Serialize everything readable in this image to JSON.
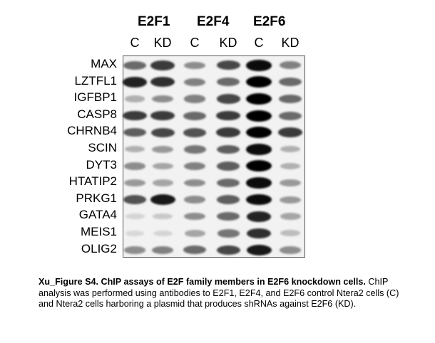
{
  "figure": {
    "groups": [
      "E2F1",
      "E2F4",
      "E2F6"
    ],
    "lanes": [
      "C",
      "KD",
      "C",
      "KD",
      "C",
      "KD"
    ],
    "genes": [
      "MAX",
      "LZTFL1",
      "IGFBP1",
      "CASP8",
      "CHRNB4",
      "SCIN",
      "DYT3",
      "HTATIP2",
      "PRKG1",
      "GATA4",
      "MEIS1",
      "OLIG2"
    ],
    "band_intensity": [
      [
        0.55,
        0.75,
        0.4,
        0.7,
        0.95,
        0.45
      ],
      [
        0.85,
        0.8,
        0.45,
        0.55,
        1.0,
        0.55
      ],
      [
        0.25,
        0.4,
        0.45,
        0.7,
        1.0,
        0.55
      ],
      [
        0.75,
        0.75,
        0.55,
        0.75,
        1.0,
        0.55
      ],
      [
        0.6,
        0.7,
        0.65,
        0.75,
        1.0,
        0.75
      ],
      [
        0.25,
        0.35,
        0.5,
        0.6,
        0.95,
        0.25
      ],
      [
        0.4,
        0.3,
        0.45,
        0.6,
        1.0,
        0.25
      ],
      [
        0.35,
        0.3,
        0.4,
        0.55,
        0.95,
        0.35
      ],
      [
        0.65,
        0.9,
        0.4,
        0.6,
        0.95,
        0.35
      ],
      [
        0.1,
        0.15,
        0.4,
        0.55,
        0.85,
        0.3
      ],
      [
        0.08,
        0.1,
        0.3,
        0.5,
        0.8,
        0.2
      ],
      [
        0.4,
        0.45,
        0.55,
        0.7,
        0.9,
        0.4
      ]
    ]
  },
  "caption": {
    "title": "Xu_Figure S4.  ChIP assays of E2F family members in E2F6 knockdown cells.",
    "body": " ChIP analysis was performed using antibodies to E2F1, E2F4, and E2F6 control Ntera2 cells (C) and Ntera2 cells harboring a plasmid that produces shRNAs against E2F6 (KD)."
  }
}
